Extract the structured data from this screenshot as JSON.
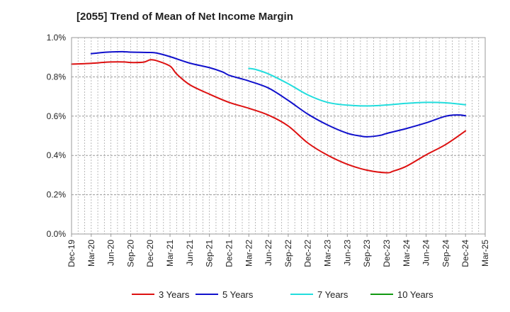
{
  "chart_data": {
    "type": "line",
    "title": "[2055]  Trend of Mean of Net Income Margin",
    "xlabel": "",
    "ylabel": "",
    "x_start": "Dec-19",
    "ylim": [
      0,
      1.0
    ],
    "y_ticks": [
      "0.0%",
      "0.2%",
      "0.4%",
      "0.6%",
      "0.8%",
      "1.0%"
    ],
    "y_tick_values": [
      0,
      0.2,
      0.4,
      0.6,
      0.8,
      1.0
    ],
    "x_ticks": [
      "Dec-19",
      "Mar-20",
      "Jun-20",
      "Sep-20",
      "Dec-20",
      "Mar-21",
      "Jun-21",
      "Sep-21",
      "Dec-21",
      "Mar-22",
      "Jun-22",
      "Sep-22",
      "Dec-22",
      "Mar-23",
      "Jun-23",
      "Sep-23",
      "Dec-23",
      "Mar-24",
      "Jun-24",
      "Sep-24",
      "Dec-24",
      "Mar-25"
    ],
    "grid": true,
    "legend_position": "bottom",
    "series": [
      {
        "name": "3 Years",
        "color": "#dd1111",
        "points": [
          [
            "Dec-19",
            0.865
          ],
          [
            "Jan-20",
            0.866
          ],
          [
            "Mar-20",
            0.869
          ],
          [
            "May-20",
            0.874
          ],
          [
            "Jun-20",
            0.876
          ],
          [
            "Aug-20",
            0.876
          ],
          [
            "Sep-20",
            0.873
          ],
          [
            "Nov-20",
            0.875
          ],
          [
            "Dec-20",
            0.887
          ],
          [
            "Jan-21",
            0.882
          ],
          [
            "Mar-21",
            0.855
          ],
          [
            "Apr-21",
            0.815
          ],
          [
            "Jun-21",
            0.76
          ],
          [
            "Sep-21",
            0.712
          ],
          [
            "Dec-21",
            0.67
          ],
          [
            "Mar-22",
            0.64
          ],
          [
            "Jun-22",
            0.605
          ],
          [
            "Sep-22",
            0.55
          ],
          [
            "Dec-22",
            0.463
          ],
          [
            "Mar-23",
            0.401
          ],
          [
            "Jun-23",
            0.355
          ],
          [
            "Sep-23",
            0.325
          ],
          [
            "Dec-23",
            0.312
          ],
          [
            "Jan-24",
            0.32
          ],
          [
            "Mar-24",
            0.345
          ],
          [
            "Jun-24",
            0.403
          ],
          [
            "Sep-24",
            0.456
          ],
          [
            "Dec-24",
            0.525
          ]
        ]
      },
      {
        "name": "5 Years",
        "color": "#1111cc",
        "points": [
          [
            "Mar-20",
            0.918
          ],
          [
            "May-20",
            0.925
          ],
          [
            "Jun-20",
            0.927
          ],
          [
            "Aug-20",
            0.928
          ],
          [
            "Sep-20",
            0.926
          ],
          [
            "Dec-20",
            0.924
          ],
          [
            "Jan-21",
            0.921
          ],
          [
            "Mar-21",
            0.903
          ],
          [
            "Jun-21",
            0.87
          ],
          [
            "Sep-21",
            0.847
          ],
          [
            "Nov-21",
            0.825
          ],
          [
            "Dec-21",
            0.808
          ],
          [
            "Feb-22",
            0.789
          ],
          [
            "Mar-22",
            0.779
          ],
          [
            "Jun-22",
            0.743
          ],
          [
            "Sep-22",
            0.68
          ],
          [
            "Dec-22",
            0.61
          ],
          [
            "Mar-23",
            0.555
          ],
          [
            "Jun-23",
            0.513
          ],
          [
            "Aug-23",
            0.499
          ],
          [
            "Sep-23",
            0.495
          ],
          [
            "Nov-23",
            0.502
          ],
          [
            "Dec-23",
            0.512
          ],
          [
            "Mar-24",
            0.537
          ],
          [
            "Jun-24",
            0.566
          ],
          [
            "Sep-24",
            0.6
          ],
          [
            "Nov-24",
            0.606
          ],
          [
            "Dec-24",
            0.602
          ]
        ]
      },
      {
        "name": "7 Years",
        "color": "#22dddd",
        "points": [
          [
            "Mar-22",
            0.843
          ],
          [
            "Apr-22",
            0.838
          ],
          [
            "Jun-22",
            0.815
          ],
          [
            "Sep-22",
            0.765
          ],
          [
            "Dec-22",
            0.708
          ],
          [
            "Mar-23",
            0.67
          ],
          [
            "Jun-23",
            0.656
          ],
          [
            "Sep-23",
            0.652
          ],
          [
            "Dec-23",
            0.657
          ],
          [
            "Mar-24",
            0.665
          ],
          [
            "Jun-24",
            0.67
          ],
          [
            "Sep-24",
            0.668
          ],
          [
            "Dec-24",
            0.658
          ]
        ]
      },
      {
        "name": "10 Years",
        "color": "#119911",
        "points": []
      }
    ]
  }
}
